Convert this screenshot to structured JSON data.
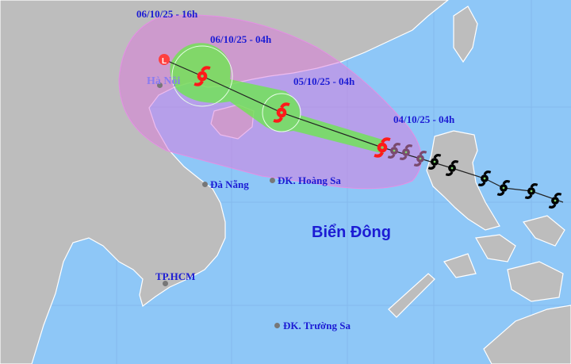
{
  "forecast_labels": [
    "06/10/25 - 16h",
    "06/10/25 - 04h",
    "05/10/25 - 04h",
    "04/10/25 - 04h"
  ],
  "places": {
    "hanoi": "Hà Nội",
    "danang": "Đà Nẵng",
    "hoangsa": "ĐK. Hoàng Sa",
    "biendong": "Biển Đông",
    "tphcm": "TP.HCM",
    "truongsa": "ĐK. Trường Sa"
  },
  "colors": {
    "sea": "#8ec7f7",
    "land": "#bdbdbd",
    "uncertainty_cone": "#e08ae0",
    "danger_zone": "#6ee05a",
    "forecast_storm": "#ff1a1a",
    "past_track": "#000000",
    "low_pressure": "#ff1a1a"
  },
  "icons": {
    "forecast": "storm-icon",
    "past": "storm-icon",
    "final": "low-pressure-icon"
  }
}
